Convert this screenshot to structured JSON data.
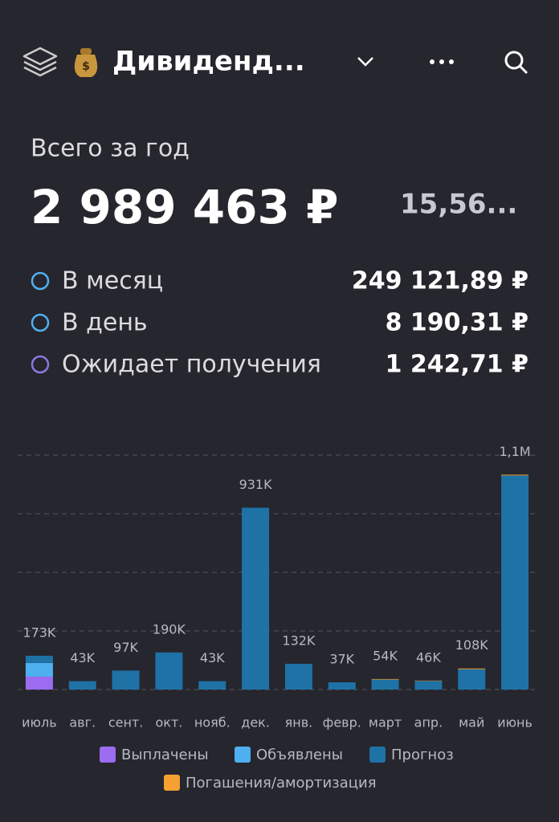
{
  "header": {
    "title": "Дивиденд..."
  },
  "summary": {
    "label": "Всего за год",
    "total": "2 989 463 ₽",
    "yield": "15,56...",
    "rows": [
      {
        "label": "В месяц",
        "value": "249 121,89 ₽"
      },
      {
        "label": "В день",
        "value": "8 190,31 ₽"
      },
      {
        "label": "Ожидает получения",
        "value": "1 242,71 ₽"
      }
    ]
  },
  "chart_data": {
    "type": "stacked_bar",
    "categories": [
      "июль",
      "авг.",
      "сент.",
      "окт.",
      "нояб.",
      "дек.",
      "янв.",
      "февр.",
      "март",
      "апр.",
      "май",
      "июнь"
    ],
    "series": [
      {
        "name": "Выплачены",
        "color": "#9b6cf0",
        "values": [
          66000,
          0,
          0,
          0,
          0,
          0,
          0,
          0,
          0,
          0,
          0,
          0
        ]
      },
      {
        "name": "Объявлены",
        "color": "#4fb0f0",
        "values": [
          70000,
          0,
          0,
          0,
          0,
          0,
          0,
          0,
          0,
          0,
          0,
          0
        ]
      },
      {
        "name": "Прогноз",
        "color": "#1e72a6",
        "values": [
          37000,
          43000,
          97000,
          190000,
          43000,
          931000,
          132000,
          37000,
          51000,
          44000,
          104000,
          1096000
        ]
      },
      {
        "name": "Погашения/амортизация",
        "color": "#f5a030",
        "values": [
          0,
          0,
          0,
          0,
          0,
          0,
          0,
          0,
          3000,
          2000,
          4000,
          4000
        ]
      }
    ],
    "totals": [
      173000,
      43000,
      97000,
      190000,
      43000,
      931000,
      132000,
      37000,
      54000,
      46000,
      108000,
      1100000
    ],
    "total_labels": [
      "173K",
      "43K",
      "97K",
      "190K",
      "43K",
      "931K",
      "132K",
      "37K",
      "54K",
      "46K",
      "108K",
      "1,1M"
    ],
    "ylim": [
      0,
      1200000
    ],
    "yticks": [
      0,
      300000,
      600000,
      900000,
      1200000
    ],
    "grid": true
  }
}
